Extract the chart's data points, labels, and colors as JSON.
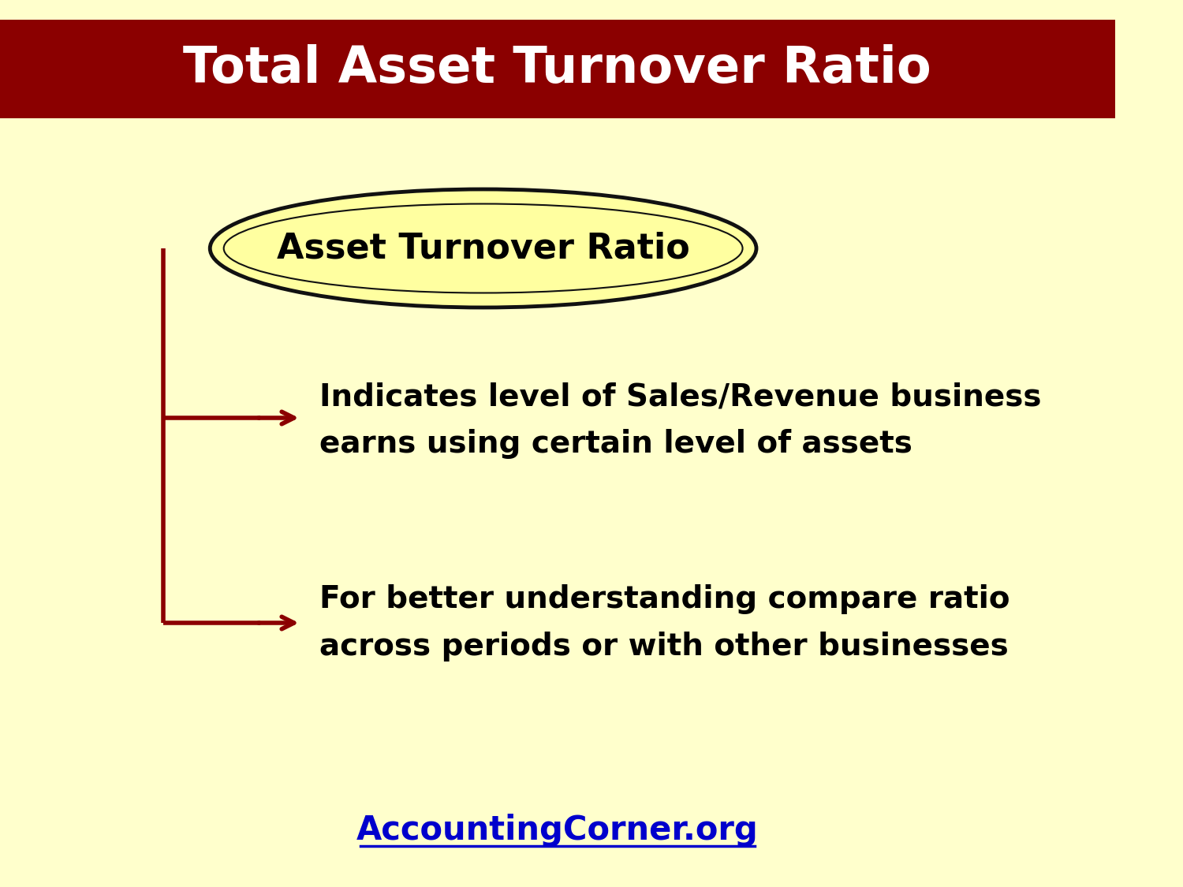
{
  "title": "Total Asset Turnover Ratio",
  "title_color": "#ffffff",
  "title_bg_color": "#8B0000",
  "bg_color": "#FFFFCC",
  "ellipse_text": "Asset Turnover Ratio",
  "ellipse_fill": "#FFFFA0",
  "ellipse_edge": "#111111",
  "bullet1_line1": "Indicates level of Sales/Revenue business",
  "bullet1_line2": "earns using certain level of assets",
  "bullet2_line1": "For better understanding compare ratio",
  "bullet2_line2": "across periods or with other businesses",
  "text_color": "#000000",
  "arrow_color": "#8B0000",
  "bracket_color": "#8B0000",
  "footer_text": "AccountingCorner.org",
  "footer_color": "#0000CC",
  "font_family": "Comic Sans MS"
}
